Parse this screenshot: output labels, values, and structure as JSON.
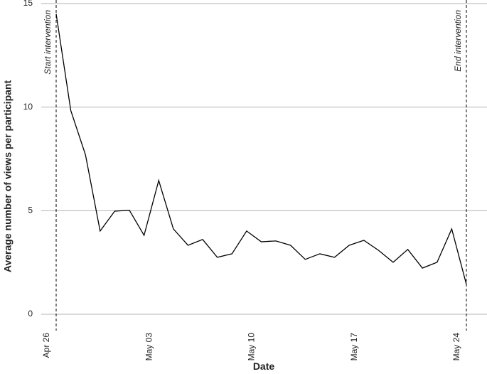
{
  "chart_data": {
    "type": "line",
    "x_label": "Date",
    "y_label": "Average number of views per participant",
    "x": [
      "Apr 26",
      "Apr 27",
      "Apr 28",
      "Apr 29",
      "Apr 30",
      "May 01",
      "May 02",
      "May 03",
      "May 04",
      "May 05",
      "May 06",
      "May 07",
      "May 08",
      "May 09",
      "May 10",
      "May 11",
      "May 12",
      "May 13",
      "May 14",
      "May 15",
      "May 16",
      "May 17",
      "May 18",
      "May 19",
      "May 20",
      "May 21",
      "May 22",
      "May 23",
      "May 24"
    ],
    "values": [
      14.5,
      9.83,
      7.7,
      4.02,
      4.98,
      5.02,
      3.81,
      6.46,
      4.12,
      3.33,
      3.61,
      2.75,
      2.92,
      4.02,
      3.5,
      3.54,
      3.33,
      2.65,
      2.92,
      2.75,
      3.33,
      3.57,
      3.09,
      2.51,
      3.13,
      2.23,
      2.51,
      4.12,
      1.44
    ],
    "color": "#000000",
    "xticks": [
      "Apr 26",
      "May 03",
      "May 10",
      "May 17",
      "May 24"
    ],
    "ylim": [
      0,
      15
    ],
    "yticks": [
      0,
      5,
      10,
      15
    ],
    "grid": true,
    "annotations": [
      {
        "text": "Start intervention",
        "x": "Apr 26"
      },
      {
        "text": "End intervention",
        "x": "May 24"
      }
    ]
  }
}
